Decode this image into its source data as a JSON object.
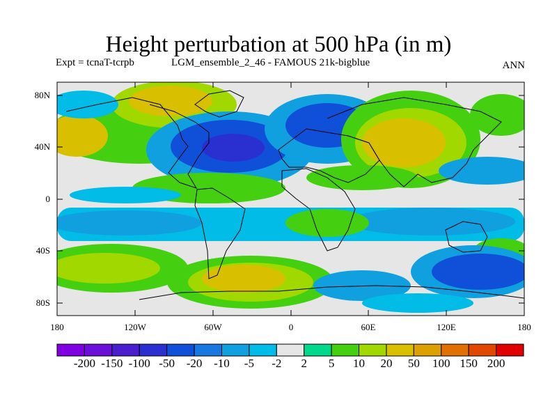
{
  "title": "Height perturbation at 500 hPa (in m)",
  "expt": "Expt = tcnaT-tcrpb",
  "run": "LGM_ensemble_2_46 - FAMOUS 21k-bigblue",
  "season": "ANN",
  "y_labels": [
    "80N",
    "40N",
    "0",
    "40S",
    "80S"
  ],
  "x_labels": [
    "180",
    "120W",
    "60W",
    "0",
    "60E",
    "120E",
    "180"
  ],
  "colorbar": {
    "colors": [
      "#7f00e0",
      "#6a10d8",
      "#4a1ecc",
      "#2a30d0",
      "#1050d8",
      "#1878e0",
      "#10a0e0",
      "#00bce6",
      "#e6e6e6",
      "#00d88c",
      "#44d010",
      "#a0d800",
      "#d8c000",
      "#dca000",
      "#e07000",
      "#e04800",
      "#e00000"
    ],
    "labels": [
      "-200",
      "-150",
      "-100",
      "-50",
      "-20",
      "-10",
      "-5",
      "-2",
      "2",
      "5",
      "10",
      "20",
      "50",
      "100",
      "150",
      "200"
    ]
  },
  "chart_data": {
    "type": "heatmap",
    "title": "Height perturbation at 500 hPa (in m)",
    "variable": "geopotential height perturbation",
    "unit": "m",
    "level": "500 hPa",
    "xlim": [
      -180,
      180
    ],
    "ylim": [
      -90,
      90
    ],
    "contour_levels": [
      -200,
      -150,
      -100,
      -50,
      -20,
      -10,
      -5,
      -2,
      2,
      5,
      10,
      20,
      50,
      100,
      150,
      200
    ],
    "features": [
      {
        "region": "North Atlantic (~45W, 40N)",
        "sign": "negative",
        "range": "-50 to -20"
      },
      {
        "region": "Eastern Europe (~30E, 55N)",
        "sign": "negative",
        "range": "-20 to -10"
      },
      {
        "region": "Central Asia (~75E, 45N)",
        "sign": "positive",
        "range": "20 to 50"
      },
      {
        "region": "North America / Arctic (~110W, 70N)",
        "sign": "positive",
        "range": "20 to 50"
      },
      {
        "region": "North Pacific (~150W, 40N)",
        "sign": "positive",
        "range": "10 to 20"
      },
      {
        "region": "South Pacific (~150W, 50S)",
        "sign": "positive",
        "range": "10 to 20"
      },
      {
        "region": "South Atlantic (~30W, 65S)",
        "sign": "positive",
        "range": "20 to 50"
      },
      {
        "region": "Southern Indian Ocean (~140E, 55S)",
        "sign": "negative",
        "range": "-20 to -10"
      },
      {
        "region": "Tropical band (~10S-30S)",
        "sign": "negative",
        "range": "-10 to -5"
      }
    ]
  }
}
